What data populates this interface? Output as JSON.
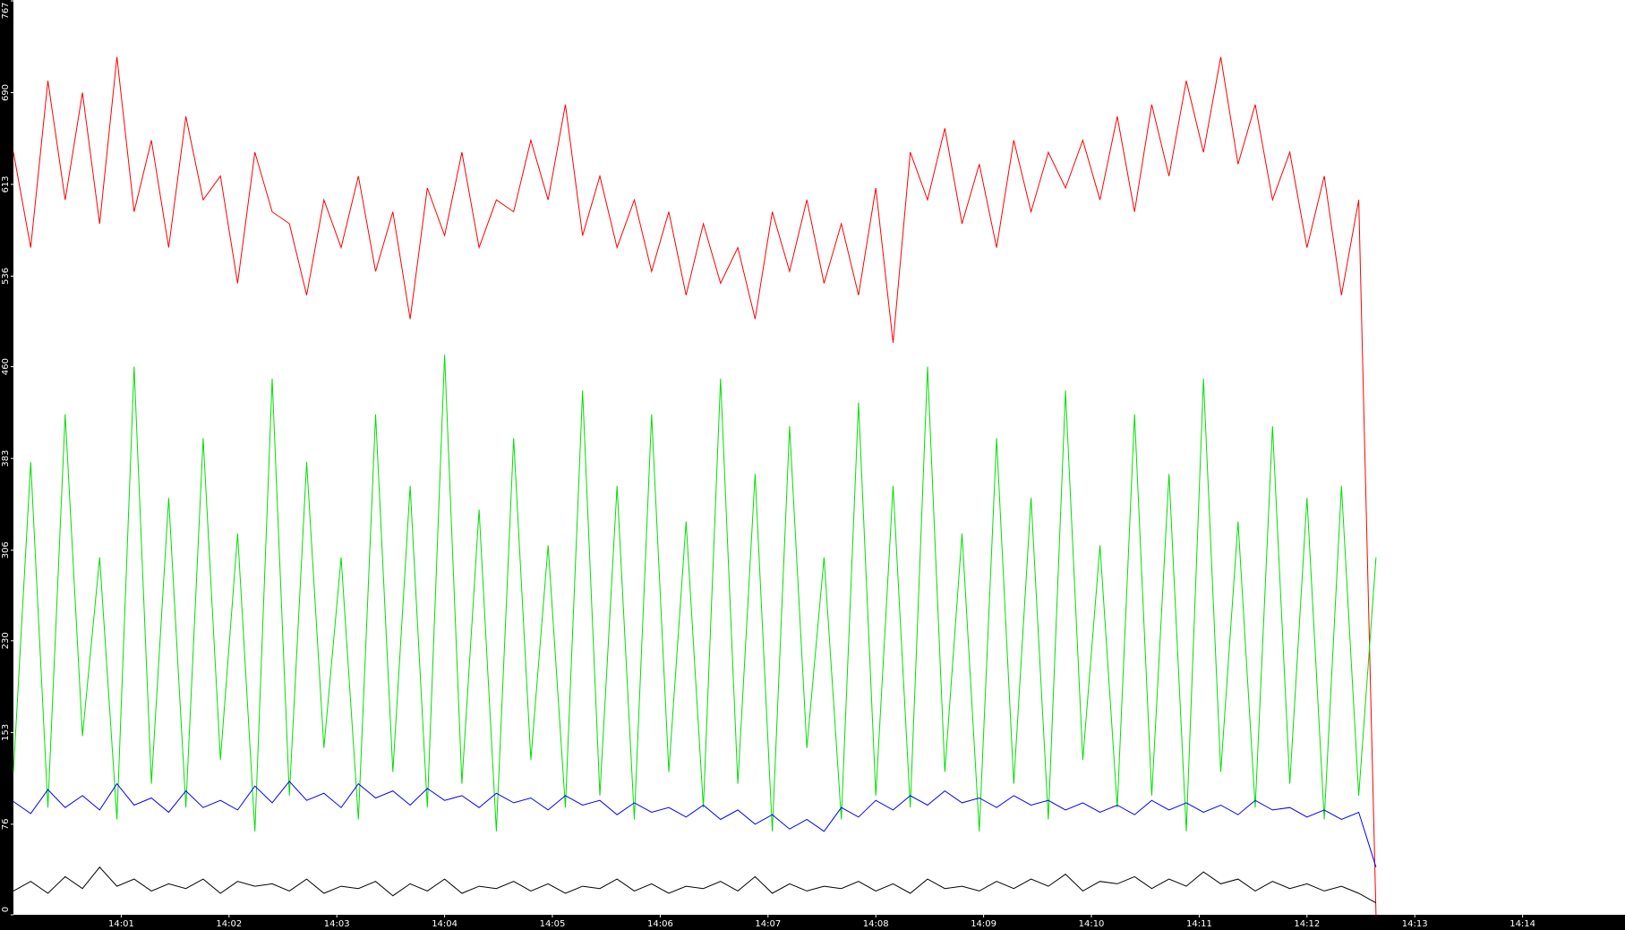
{
  "chart_data": {
    "type": "line",
    "x": [
      840,
      840.16,
      840.32,
      840.48,
      840.64,
      840.8,
      840.96,
      841.12,
      841.28,
      841.44,
      841.6,
      841.76,
      841.92,
      842.08,
      842.24,
      842.4,
      842.56,
      842.72,
      842.88,
      843.04,
      843.2,
      843.36,
      843.52,
      843.68,
      843.84,
      844,
      844.16,
      844.32,
      844.48,
      844.64,
      844.8,
      844.96,
      845.12,
      845.28,
      845.44,
      845.6,
      845.76,
      845.92,
      846.08,
      846.24,
      846.4,
      846.56,
      846.72,
      846.88,
      847.04,
      847.2,
      847.36,
      847.52,
      847.68,
      847.84,
      848,
      848.16,
      848.32,
      848.48,
      848.64,
      848.8,
      848.96,
      849.12,
      849.28,
      849.44,
      849.6,
      849.76,
      849.92,
      850.08,
      850.24,
      850.4,
      850.56,
      850.72,
      850.88,
      851.04,
      851.2,
      851.36,
      851.52,
      851.68,
      851.84,
      852,
      852.16,
      852.32,
      852.48,
      852.64
    ],
    "series": [
      {
        "color": "#ff0000",
        "values": [
          640,
          560,
          700,
          600,
          690,
          580,
          720,
          590,
          650,
          560,
          670,
          600,
          620,
          530,
          640,
          590,
          580,
          520,
          600,
          560,
          620,
          540,
          590,
          500,
          610,
          570,
          640,
          560,
          600,
          590,
          650,
          600,
          680,
          570,
          620,
          560,
          600,
          540,
          590,
          520,
          580,
          530,
          560,
          500,
          590,
          540,
          600,
          530,
          580,
          520,
          610,
          480,
          640,
          600,
          660,
          580,
          630,
          560,
          650,
          590,
          640,
          610,
          650,
          600,
          670,
          590,
          680,
          620,
          700,
          640,
          720,
          630,
          680,
          600,
          640,
          560,
          620,
          520,
          600,
          0
        ]
      },
      {
        "color": "#00e000",
        "values": [
          120,
          380,
          90,
          420,
          150,
          300,
          80,
          460,
          110,
          350,
          90,
          400,
          130,
          320,
          70,
          450,
          100,
          380,
          140,
          300,
          80,
          420,
          120,
          360,
          90,
          470,
          110,
          340,
          70,
          400,
          130,
          310,
          90,
          440,
          100,
          360,
          80,
          420,
          120,
          330,
          90,
          450,
          110,
          370,
          70,
          410,
          140,
          300,
          80,
          430,
          100,
          360,
          90,
          460,
          120,
          320,
          70,
          400,
          110,
          350,
          80,
          440,
          130,
          310,
          90,
          420,
          100,
          370,
          70,
          450,
          120,
          330,
          90,
          410,
          110,
          350,
          80,
          360,
          100,
          300
        ]
      },
      {
        "color": "#0000ff",
        "values": [
          95,
          85,
          105,
          90,
          100,
          88,
          110,
          92,
          98,
          86,
          104,
          90,
          96,
          88,
          108,
          94,
          112,
          96,
          102,
          90,
          110,
          98,
          104,
          92,
          106,
          96,
          100,
          90,
          102,
          94,
          98,
          88,
          100,
          92,
          96,
          84,
          94,
          86,
          90,
          82,
          92,
          80,
          88,
          76,
          84,
          72,
          80,
          70,
          90,
          82,
          96,
          88,
          100,
          92,
          104,
          94,
          98,
          90,
          100,
          92,
          96,
          88,
          94,
          86,
          92,
          84,
          96,
          88,
          94,
          86,
          92,
          84,
          96,
          88,
          90,
          82,
          88,
          80,
          86,
          40
        ]
      },
      {
        "color": "#000000",
        "values": [
          20,
          28,
          18,
          32,
          22,
          40,
          24,
          30,
          20,
          26,
          22,
          30,
          18,
          28,
          24,
          26,
          20,
          30,
          18,
          24,
          22,
          28,
          16,
          26,
          20,
          30,
          18,
          24,
          22,
          28,
          20,
          26,
          18,
          24,
          22,
          30,
          20,
          26,
          18,
          24,
          22,
          28,
          20,
          32,
          18,
          26,
          20,
          24,
          22,
          28,
          20,
          26,
          18,
          30,
          22,
          24,
          20,
          28,
          22,
          30,
          24,
          34,
          20,
          28,
          26,
          32,
          22,
          30,
          24,
          36,
          26,
          30,
          20,
          28,
          22,
          26,
          20,
          24,
          18,
          10
        ]
      }
    ],
    "xlim": [
      840,
      854.95
    ],
    "xticks": [
      {
        "value": 841,
        "label": "14:01"
      },
      {
        "value": 842,
        "label": "14:02"
      },
      {
        "value": 843,
        "label": "14:03"
      },
      {
        "value": 844,
        "label": "14:04"
      },
      {
        "value": 845,
        "label": "14:05"
      },
      {
        "value": 846,
        "label": "14:06"
      },
      {
        "value": 847,
        "label": "14:07"
      },
      {
        "value": 848,
        "label": "14:08"
      },
      {
        "value": 849,
        "label": "14:09"
      },
      {
        "value": 850,
        "label": "14:10"
      },
      {
        "value": 851,
        "label": "14:11"
      },
      {
        "value": 852,
        "label": "14:12"
      },
      {
        "value": 853,
        "label": "14:13"
      },
      {
        "value": 854,
        "label": "14:14"
      }
    ],
    "ylim": [
      0,
      767
    ],
    "yticks": [
      0,
      76,
      153,
      230,
      306,
      383,
      460,
      536,
      613,
      690,
      767
    ]
  }
}
